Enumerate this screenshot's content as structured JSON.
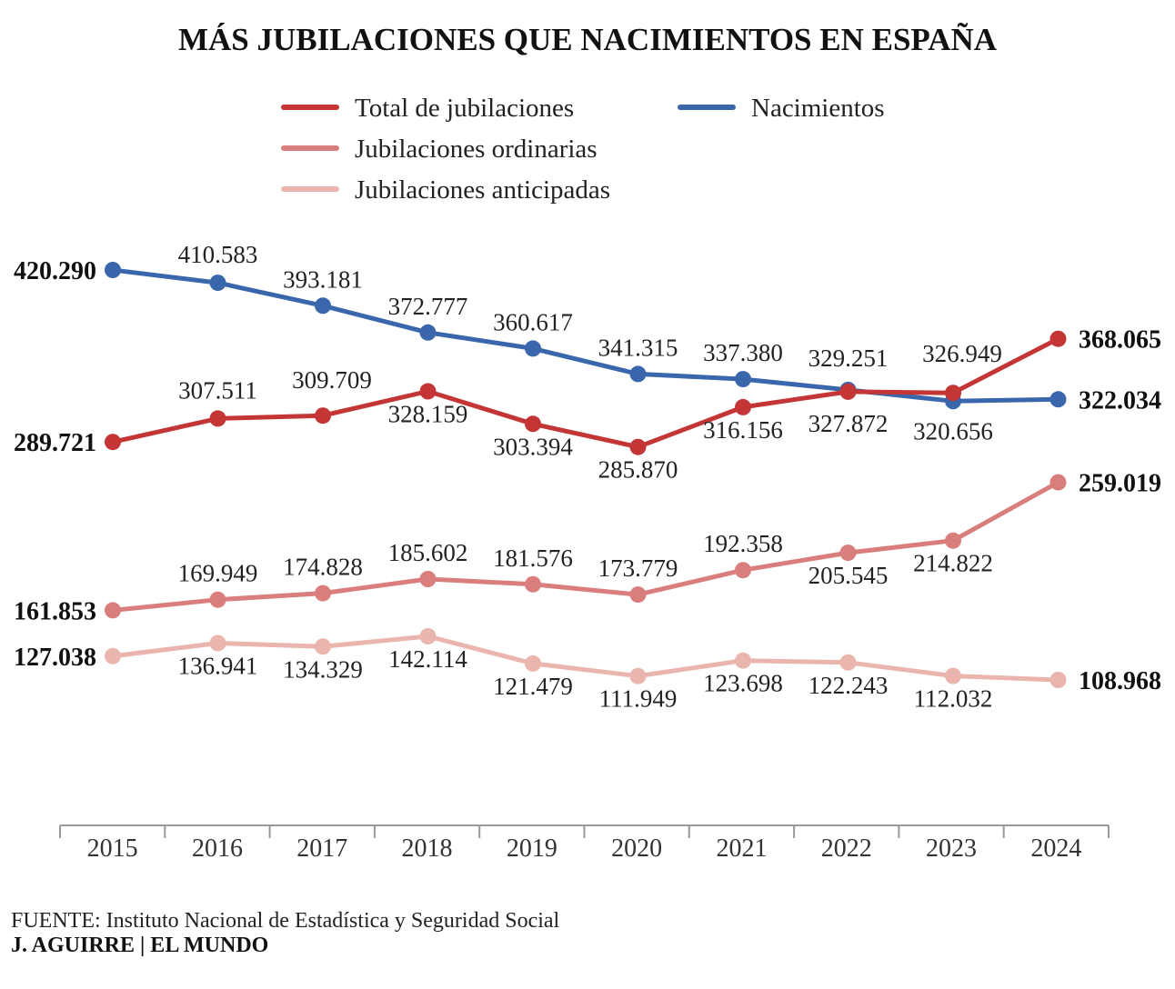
{
  "title": "MÁS JUBILACIONES QUE NACIMIENTOS EN ESPAÑA",
  "source": "FUENTE:  Instituto Nacional de Estadística y Seguridad Social",
  "credit": "J. AGUIRRE | EL MUNDO",
  "chart_data": {
    "type": "line",
    "title": "MÁS JUBILACIONES QUE NACIMIENTOS EN ESPAÑA",
    "x": [
      "2015",
      "2016",
      "2017",
      "2018",
      "2019",
      "2020",
      "2021",
      "2022",
      "2023",
      "2024"
    ],
    "legend_placement": "top",
    "grid": false,
    "ylim": [
      100000,
      430000
    ],
    "series": [
      {
        "name": "Total de jubilaciones",
        "color": "#c43536",
        "values": [
          289721,
          307511,
          309709,
          328159,
          303394,
          285870,
          316156,
          327872,
          326949,
          368065
        ],
        "labels": [
          "289.721",
          "307.511",
          "309.709",
          "328.159",
          "303.394",
          "285.870",
          "316.156",
          "327.872",
          "326.949",
          "368.065"
        ]
      },
      {
        "name": "Nacimientos",
        "color": "#3a67ab",
        "values": [
          420290,
          410583,
          393181,
          372777,
          360617,
          341315,
          337380,
          329251,
          320656,
          322034
        ],
        "labels": [
          "420.290",
          "410.583",
          "393.181",
          "372.777",
          "360.617",
          "341.315",
          "337.380",
          "329.251",
          "320.656",
          "322.034"
        ]
      },
      {
        "name": "Jubilaciones ordinarias",
        "color": "#d97e7c",
        "values": [
          161853,
          169949,
          174828,
          185602,
          181576,
          173779,
          192358,
          205545,
          214822,
          259019
        ],
        "labels": [
          "161.853",
          "169.949",
          "174.828",
          "185.602",
          "181.576",
          "173.779",
          "192.358",
          "205.545",
          "214.822",
          "259.019"
        ]
      },
      {
        "name": "Jubilaciones anticipadas",
        "color": "#eab5ad",
        "values": [
          127038,
          136941,
          134329,
          142114,
          121479,
          111949,
          123698,
          122243,
          112032,
          108968
        ],
        "labels": [
          "127.038",
          "136.941",
          "134.329",
          "142.114",
          "121.479",
          "111.949",
          "123.698",
          "122.243",
          "112.032",
          "108.968"
        ]
      }
    ]
  }
}
